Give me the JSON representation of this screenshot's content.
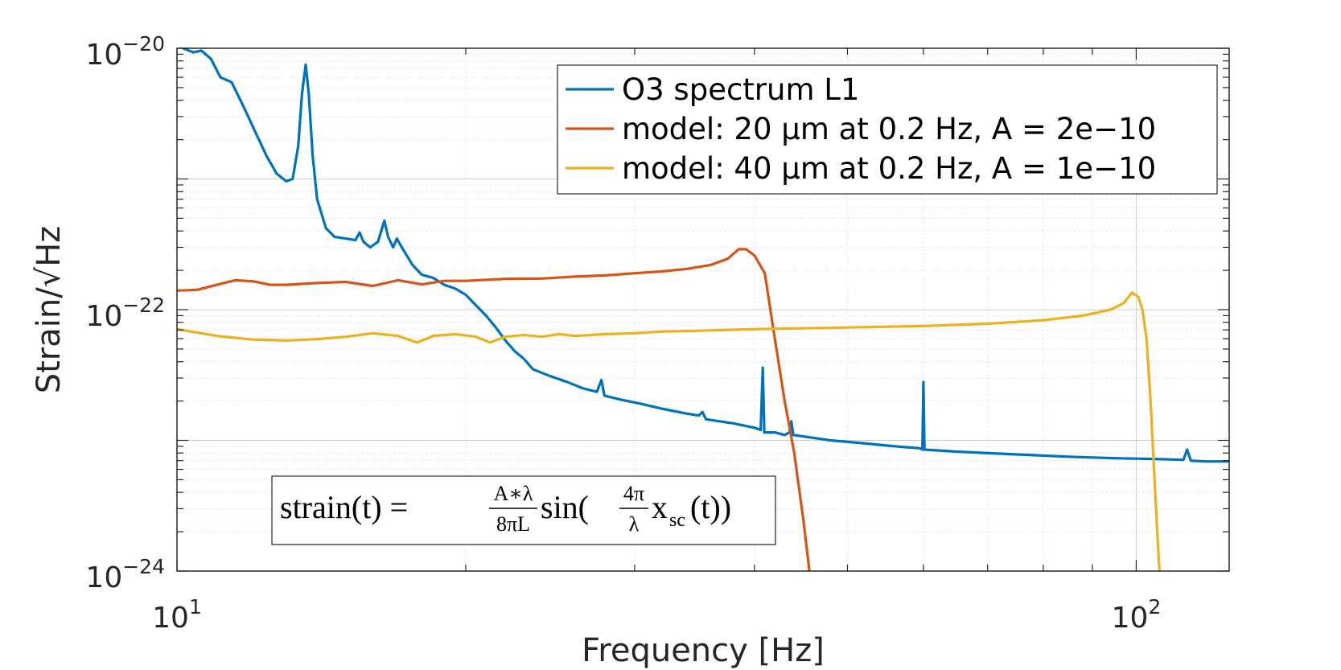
{
  "chart_data": {
    "type": "line",
    "xlabel": "Frequency [Hz]",
    "ylabel": "Strain/√Hz",
    "x_scale": "log",
    "y_scale": "log",
    "xlim": [
      10,
      125
    ],
    "ylim": [
      1e-24,
      1e-20
    ],
    "grid": "on (major and minor)",
    "legend_position": "top-right",
    "x_ticks": [
      {
        "value": 10,
        "base": "10",
        "exp": "1"
      },
      {
        "value": 100,
        "base": "10",
        "exp": "2"
      }
    ],
    "y_ticks": [
      {
        "value": 1e-20,
        "base": "10",
        "exp": "−20"
      },
      {
        "value": 1e-22,
        "base": "10",
        "exp": "−22"
      },
      {
        "value": 1e-24,
        "base": "10",
        "exp": "−24"
      }
    ],
    "formula": {
      "lhs": "strain(t) = ",
      "frac1_num": "A∗λ",
      "frac1_den": "8πL",
      "mid": "sin(",
      "frac2_num": "4π",
      "frac2_den": "λ",
      "var": "x",
      "var_sub": "sc",
      "rhs": "(t))"
    },
    "series": [
      {
        "name": "O3 spectrum L1",
        "color": "#0072BD",
        "points": [
          [
            10.15,
            1e-20
          ],
          [
            10.4,
            9.3e-21
          ],
          [
            10.6,
            9.6e-21
          ],
          [
            10.85,
            8.3e-21
          ],
          [
            11.1,
            6e-21
          ],
          [
            11.4,
            5.5e-21
          ],
          [
            11.75,
            3.5e-21
          ],
          [
            12.1,
            2.2e-21
          ],
          [
            12.4,
            1.5e-21
          ],
          [
            12.7,
            1.1e-21
          ],
          [
            13.0,
            9.6e-22
          ],
          [
            13.2,
            1e-21
          ],
          [
            13.38,
            1.8e-21
          ],
          [
            13.5,
            4.5e-21
          ],
          [
            13.62,
            7.5e-21
          ],
          [
            13.72,
            4.5e-21
          ],
          [
            13.85,
            1.5e-21
          ],
          [
            14.0,
            7e-22
          ],
          [
            14.3,
            4.2e-22
          ],
          [
            14.6,
            3.6e-22
          ],
          [
            15.0,
            3.5e-22
          ],
          [
            15.35,
            3.4e-22
          ],
          [
            15.5,
            3.9e-22
          ],
          [
            15.65,
            3.3e-22
          ],
          [
            15.9,
            3e-22
          ],
          [
            16.2,
            3.3e-22
          ],
          [
            16.45,
            4.8e-22
          ],
          [
            16.6,
            3.6e-22
          ],
          [
            16.8,
            3e-22
          ],
          [
            16.95,
            3.5e-22
          ],
          [
            17.2,
            2.9e-22
          ],
          [
            17.6,
            2.2e-22
          ],
          [
            18.0,
            1.85e-22
          ],
          [
            18.5,
            1.75e-22
          ],
          [
            19.0,
            1.55e-22
          ],
          [
            19.5,
            1.45e-22
          ],
          [
            20.0,
            1.3e-22
          ],
          [
            20.5,
            1.08e-22
          ],
          [
            21.0,
            9e-23
          ],
          [
            21.5,
            7.3e-23
          ],
          [
            22.0,
            5.8e-23
          ],
          [
            22.5,
            4.8e-23
          ],
          [
            23.0,
            4.2e-23
          ],
          [
            23.5,
            3.5e-23
          ],
          [
            24.5,
            3.1e-23
          ],
          [
            25.5,
            2.8e-23
          ],
          [
            26.5,
            2.5e-23
          ],
          [
            27.4,
            2.35e-23
          ],
          [
            27.7,
            2.9e-23
          ],
          [
            27.9,
            2.2e-23
          ],
          [
            29.0,
            2.05e-23
          ],
          [
            30.5,
            1.9e-23
          ],
          [
            32.0,
            1.75e-23
          ],
          [
            34.0,
            1.6e-23
          ],
          [
            35.0,
            1.55e-23
          ],
          [
            35.3,
            1.65e-23
          ],
          [
            35.6,
            1.45e-23
          ],
          [
            38.0,
            1.35e-23
          ],
          [
            40.0,
            1.25e-23
          ],
          [
            40.6,
            1.2e-23
          ],
          [
            40.8,
            3.6e-23
          ],
          [
            40.95,
            1.15e-23
          ],
          [
            42.0,
            1.15e-23
          ],
          [
            43.0,
            1.1e-23
          ],
          [
            43.5,
            1.15e-23
          ],
          [
            43.7,
            1.4e-23
          ],
          [
            43.9,
            1.1e-23
          ],
          [
            48.0,
            1e-23
          ],
          [
            52.0,
            9.5e-24
          ],
          [
            56.0,
            9e-24
          ],
          [
            59.5,
            8.7e-24
          ],
          [
            59.85,
            8.5e-24
          ],
          [
            60.0,
            2.8e-23
          ],
          [
            60.15,
            8.5e-24
          ],
          [
            65.0,
            8.2e-24
          ],
          [
            75.0,
            7.8e-24
          ],
          [
            85.0,
            7.5e-24
          ],
          [
            95.0,
            7.3e-24
          ],
          [
            105.0,
            7.2e-24
          ],
          [
            112.0,
            7.1e-24
          ],
          [
            113.0,
            8.5e-24
          ],
          [
            114.0,
            7e-24
          ],
          [
            118.0,
            6.9e-24
          ],
          [
            125.0,
            6.9e-24
          ]
        ]
      },
      {
        "name": "model: 20 μm at 0.2 Hz, A = 2e−10",
        "color": "#D95319",
        "points": [
          [
            10.0,
            1.4e-22
          ],
          [
            10.5,
            1.42e-22
          ],
          [
            11.0,
            1.55e-22
          ],
          [
            11.5,
            1.68e-22
          ],
          [
            12.0,
            1.65e-22
          ],
          [
            12.5,
            1.55e-22
          ],
          [
            13.0,
            1.55e-22
          ],
          [
            14.0,
            1.6e-22
          ],
          [
            15.0,
            1.63e-22
          ],
          [
            16.0,
            1.52e-22
          ],
          [
            17.0,
            1.68e-22
          ],
          [
            18.0,
            1.56e-22
          ],
          [
            19.0,
            1.66e-22
          ],
          [
            20.0,
            1.66e-22
          ],
          [
            22.0,
            1.72e-22
          ],
          [
            24.0,
            1.73e-22
          ],
          [
            26.0,
            1.79e-22
          ],
          [
            28.0,
            1.83e-22
          ],
          [
            30.0,
            1.9e-22
          ],
          [
            32.0,
            1.96e-22
          ],
          [
            34.0,
            2.05e-22
          ],
          [
            36.0,
            2.2e-22
          ],
          [
            37.5,
            2.45e-22
          ],
          [
            38.5,
            2.9e-22
          ],
          [
            39.2,
            2.9e-22
          ],
          [
            40.0,
            2.6e-22
          ],
          [
            41.0,
            1.9e-22
          ],
          [
            42.0,
            6e-23
          ],
          [
            43.0,
            2e-23
          ],
          [
            44.0,
            8e-24
          ],
          [
            45.0,
            2.4e-24
          ],
          [
            45.8,
            8e-25
          ]
        ]
      },
      {
        "name": "model: 40 μm at 0.2 Hz, A = 1e−10",
        "color": "#EDB120",
        "points": [
          [
            10.0,
            7.1e-23
          ],
          [
            11.0,
            6.3e-23
          ],
          [
            12.0,
            5.9e-23
          ],
          [
            13.0,
            5.8e-23
          ],
          [
            14.0,
            5.95e-23
          ],
          [
            15.0,
            6.2e-23
          ],
          [
            16.0,
            6.6e-23
          ],
          [
            17.0,
            6.3e-23
          ],
          [
            17.8,
            5.6e-23
          ],
          [
            18.5,
            6.3e-23
          ],
          [
            19.5,
            6.5e-23
          ],
          [
            20.5,
            6.2e-23
          ],
          [
            21.2,
            5.6e-23
          ],
          [
            22.0,
            6.2e-23
          ],
          [
            23.0,
            6.4e-23
          ],
          [
            24.0,
            6.2e-23
          ],
          [
            25.0,
            6.5e-23
          ],
          [
            26.0,
            6.3e-23
          ],
          [
            27.0,
            6.4e-23
          ],
          [
            28.0,
            6.5e-23
          ],
          [
            30.0,
            6.6e-23
          ],
          [
            32.0,
            6.8e-23
          ],
          [
            35.0,
            6.9e-23
          ],
          [
            40.0,
            7.1e-23
          ],
          [
            50.0,
            7.3e-23
          ],
          [
            60.0,
            7.5e-23
          ],
          [
            70.0,
            7.8e-23
          ],
          [
            80.0,
            8.3e-23
          ],
          [
            88.0,
            9e-23
          ],
          [
            94.0,
            1e-22
          ],
          [
            97.0,
            1.12e-22
          ],
          [
            99.0,
            1.35e-22
          ],
          [
            100.5,
            1.25e-22
          ],
          [
            101.5,
            1e-22
          ],
          [
            102.5,
            6e-23
          ],
          [
            103.5,
            2e-23
          ],
          [
            104.5,
            5e-24
          ],
          [
            105.5,
            1.3e-24
          ],
          [
            106.0,
            8e-25
          ]
        ]
      }
    ]
  }
}
